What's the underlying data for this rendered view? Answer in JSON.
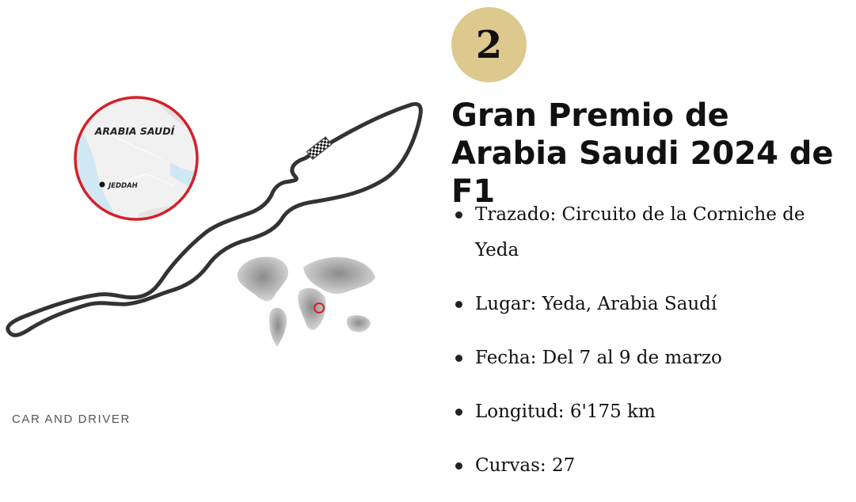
{
  "figure": {
    "inset_label": "ARABIA SAUDÍ",
    "city_label": "JEDDAH",
    "credit": "CAR AND DRIVER"
  },
  "race": {
    "rank": "2",
    "title": "Gran Premio de Arabia Saudi 2024 de F1"
  },
  "facts": [
    "Trazado: Circuito de la Corniche de Yeda",
    "Lugar: Yeda, Arabia Saudí",
    "Fecha: Del 7 al 9 de marzo",
    "Longitud: 6'175 km",
    "Curvas: 27"
  ],
  "colors": {
    "badge": "#ddc98e",
    "inset_ring": "#d61f26",
    "track": "#333333",
    "sea": "#cfe8f3"
  },
  "icons": [
    "checkered-flag-icon",
    "location-ring-icon"
  ]
}
